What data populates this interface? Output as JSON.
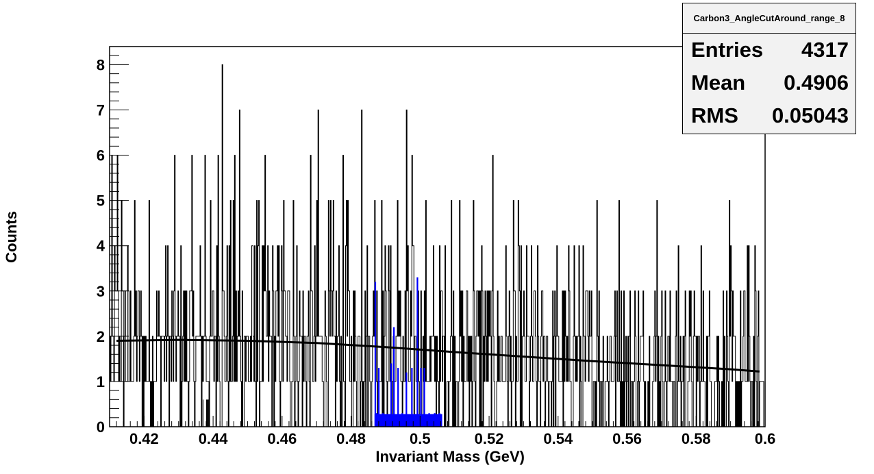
{
  "chart_data": {
    "type": "bar",
    "title": "Carbon3_AngleCutAround_range_8",
    "xlabel": "Invariant Mass (GeV)",
    "ylabel": "Counts",
    "xlim": [
      0.41,
      0.6
    ],
    "ylim": [
      0,
      8.4
    ],
    "x_ticks": [
      "0.42",
      "0.44",
      "0.46",
      "0.48",
      "0.5",
      "0.52",
      "0.54",
      "0.56",
      "0.58",
      "0.6"
    ],
    "x_tick_values": [
      0.42,
      0.44,
      0.46,
      0.48,
      0.5,
      0.52,
      0.54,
      0.56,
      0.58,
      0.6
    ],
    "y_ticks": [
      "0",
      "1",
      "2",
      "3",
      "4",
      "5",
      "6",
      "7",
      "8"
    ],
    "y_tick_values": [
      0,
      1,
      2,
      3,
      4,
      5,
      6,
      7,
      8
    ],
    "stats": {
      "entries_label": "Entries",
      "entries": "4317",
      "mean_label": "Mean",
      "mean": "0.4906",
      "rms_label": "RMS",
      "rms": "0.05043"
    },
    "series": [
      {
        "kind": "histogram",
        "bin_width": 0.0002,
        "color": "#000000",
        "peaks": [
          {
            "x": 0.4122,
            "y": 6
          },
          {
            "x": 0.4134,
            "y": 5
          },
          {
            "x": 0.4216,
            "y": 5
          },
          {
            "x": 0.4376,
            "y": 6
          },
          {
            "x": 0.4392,
            "y": 5
          },
          {
            "x": 0.4414,
            "y": 6
          },
          {
            "x": 0.4426,
            "y": 8
          },
          {
            "x": 0.4462,
            "y": 6
          },
          {
            "x": 0.4476,
            "y": 7
          },
          {
            "x": 0.4526,
            "y": 5
          },
          {
            "x": 0.4604,
            "y": 5
          },
          {
            "x": 0.4632,
            "y": 5
          },
          {
            "x": 0.4704,
            "y": 7
          },
          {
            "x": 0.4786,
            "y": 5
          },
          {
            "x": 0.483,
            "y": 7
          },
          {
            "x": 0.4868,
            "y": 5
          },
          {
            "x": 0.4888,
            "y": 5
          },
          {
            "x": 0.4934,
            "y": 5
          },
          {
            "x": 0.496,
            "y": 7
          },
          {
            "x": 0.4976,
            "y": 6
          },
          {
            "x": 0.5016,
            "y": 5
          },
          {
            "x": 0.509,
            "y": 5
          },
          {
            "x": 0.5154,
            "y": 5
          },
          {
            "x": 0.5178,
            "y": 4
          },
          {
            "x": 0.5446,
            "y": 4
          },
          {
            "x": 0.5512,
            "y": 5
          },
          {
            "x": 0.5578,
            "y": 5
          },
          {
            "x": 0.5686,
            "y": 5
          },
          {
            "x": 0.5748,
            "y": 4
          },
          {
            "x": 0.5814,
            "y": 4
          },
          {
            "x": 0.5948,
            "y": 4
          }
        ]
      },
      {
        "kind": "histogram",
        "color": "#0000ff",
        "bins": [
          {
            "x": 0.4868,
            "y": 3.2
          },
          {
            "x": 0.4872,
            "y": 0.3
          },
          {
            "x": 0.4878,
            "y": 1.3
          },
          {
            "x": 0.4884,
            "y": 0.2
          },
          {
            "x": 0.489,
            "y": 0.3
          },
          {
            "x": 0.49,
            "y": 0.2
          },
          {
            "x": 0.4914,
            "y": 1.4
          },
          {
            "x": 0.4922,
            "y": 2.2
          },
          {
            "x": 0.4934,
            "y": 1.3
          },
          {
            "x": 0.4946,
            "y": 0.3
          },
          {
            "x": 0.4958,
            "y": 1.2
          },
          {
            "x": 0.4974,
            "y": 1.3
          },
          {
            "x": 0.499,
            "y": 3.3
          },
          {
            "x": 0.5,
            "y": 1.3
          },
          {
            "x": 0.501,
            "y": 1.3
          },
          {
            "x": 0.5024,
            "y": 0.3
          },
          {
            "x": 0.504,
            "y": 0.3
          },
          {
            "x": 0.5054,
            "y": 0.3
          }
        ]
      },
      {
        "kind": "line",
        "color": "#000000",
        "x": [
          0.412,
          0.43,
          0.45,
          0.47,
          0.49,
          0.51,
          0.53,
          0.55,
          0.57,
          0.59,
          0.5984
        ],
        "y": [
          1.9,
          1.92,
          1.9,
          1.85,
          1.76,
          1.65,
          1.55,
          1.45,
          1.36,
          1.27,
          1.22
        ]
      }
    ]
  }
}
